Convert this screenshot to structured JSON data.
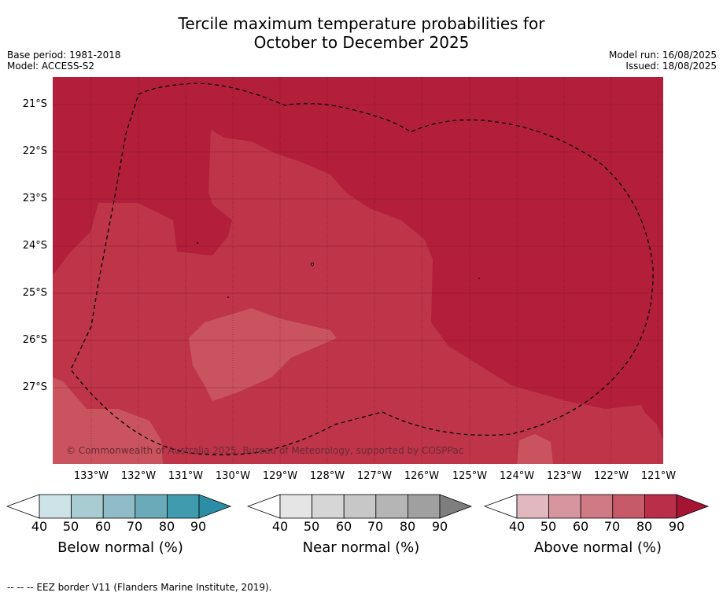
{
  "header": {
    "title_line1": "Tercile maximum temperature probabilities for",
    "title_line2": "October to December 2025",
    "base_period": "Base period: 1981-2018",
    "model": "Model: ACCESS-S2",
    "model_run": "Model run: 16/08/2025",
    "issued": "Issued: 18/08/2025"
  },
  "map": {
    "latitude_labels": [
      "21°S",
      "22°S",
      "23°S",
      "24°S",
      "25°S",
      "26°S",
      "27°S"
    ],
    "longitude_labels": [
      "133°W",
      "132°W",
      "131°W",
      "130°W",
      "129°W",
      "128°W",
      "127°W",
      "126°W",
      "125°W",
      "124°W",
      "123°W",
      "122°W",
      "121°W"
    ],
    "copyright": "© Commonwealth of Australia 2025, Bureau of Meteorology, supported by COSPPac",
    "colors": {
      "above_90": "#b31e3b",
      "above_80": "#be3449",
      "above_70": "#c9545f",
      "ocean_bg": "#b31e3b"
    }
  },
  "legend": {
    "below": {
      "title": "Below normal (%)",
      "ticks": [
        "40",
        "50",
        "60",
        "70",
        "80",
        "90"
      ],
      "colors": [
        "#cde3e8",
        "#a9cbd2",
        "#8fbcc7",
        "#6baab8",
        "#3f9bad",
        "#2c8ea6"
      ]
    },
    "near": {
      "title": "Near normal (%)",
      "ticks": [
        "40",
        "50",
        "60",
        "70",
        "80",
        "90"
      ],
      "colors": [
        "#e5e5e5",
        "#d6d6d6",
        "#c7c7c7",
        "#b5b5b5",
        "#a0a0a0",
        "#7e7e7e"
      ]
    },
    "above": {
      "title": "Above normal (%)",
      "ticks": [
        "40",
        "50",
        "60",
        "70",
        "80",
        "90"
      ],
      "colors": [
        "#e2b8c0",
        "#d6959f",
        "#cf7a84",
        "#c65a68",
        "#b92f4a",
        "#a51433"
      ]
    }
  },
  "footer": {
    "eez_note": "--  --  -- EEZ border V11 (Flanders Marine Institute, 2019)."
  }
}
